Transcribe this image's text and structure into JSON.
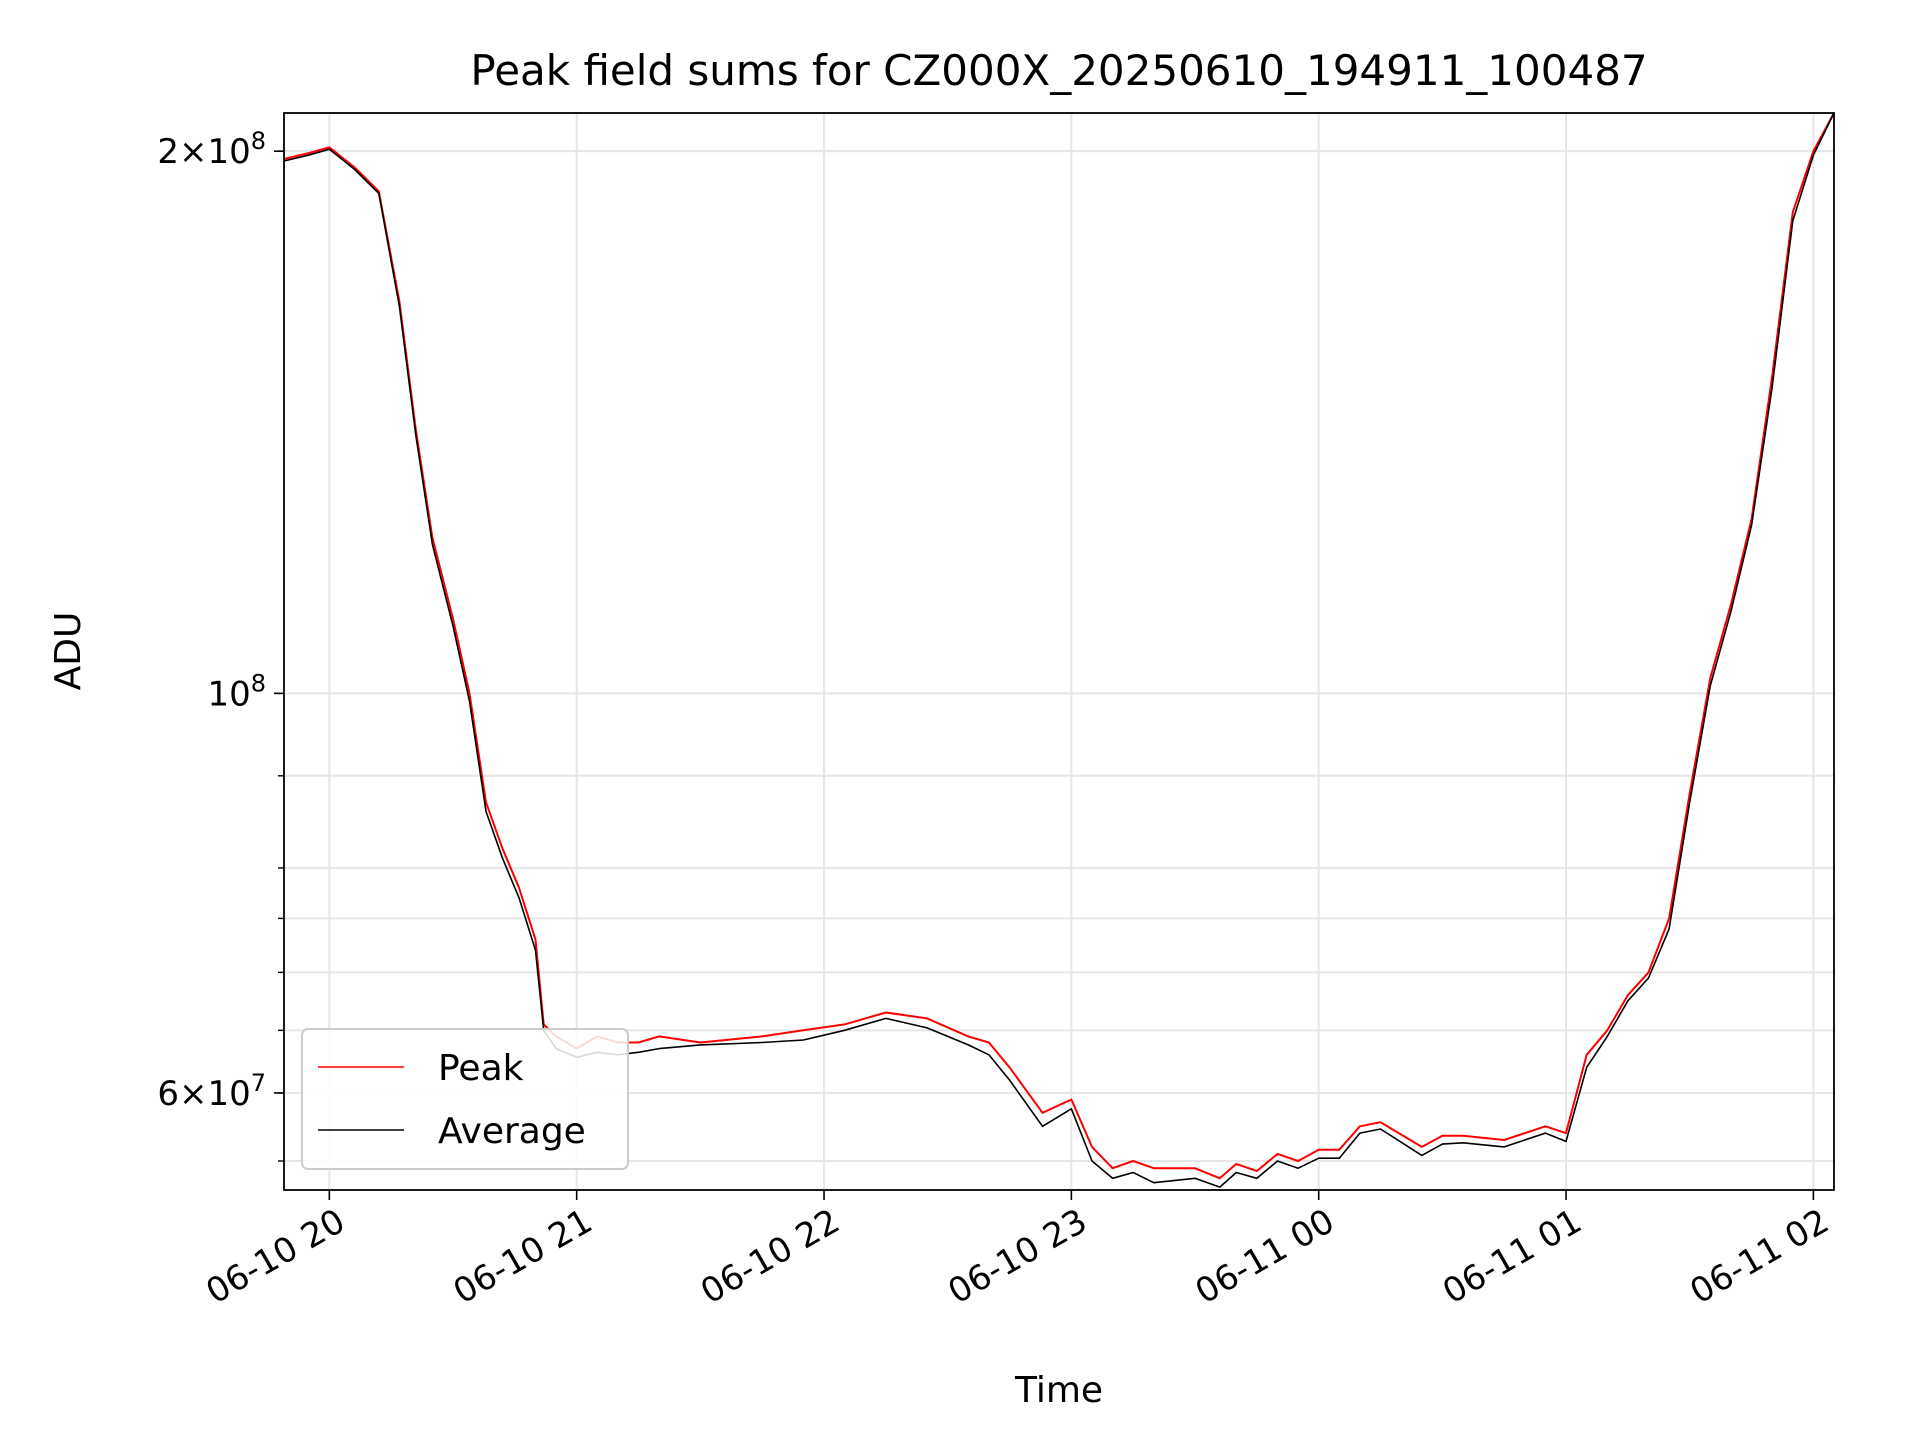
{
  "chart_data": {
    "type": "line",
    "title": "Peak field sums for CZ000X_20250610_194911_100487",
    "xlabel": "Time",
    "ylabel": "ADU",
    "yscale": "log",
    "grid": true,
    "legend_position": "lower-left",
    "xlim": [
      "2025-06-10 19:49",
      "2025-06-11 02:05"
    ],
    "ylim": [
      53000000,
      210000000
    ],
    "x_ticks": [
      {
        "t": "2025-06-10 20:00",
        "label": "06-10 20"
      },
      {
        "t": "2025-06-10 21:00",
        "label": "06-10 21"
      },
      {
        "t": "2025-06-10 22:00",
        "label": "06-10 22"
      },
      {
        "t": "2025-06-10 23:00",
        "label": "06-10 23"
      },
      {
        "t": "2025-06-11 00:00",
        "label": "06-11 00"
      },
      {
        "t": "2025-06-11 01:00",
        "label": "06-11 01"
      },
      {
        "t": "2025-06-11 02:00",
        "label": "06-11 02"
      }
    ],
    "y_major_ticks": [
      {
        "v": 60000000,
        "mant": "6",
        "exp": "7"
      },
      {
        "v": 100000000,
        "mant": "",
        "exp": "8"
      },
      {
        "v": 200000000,
        "mant": "2",
        "exp": "8"
      }
    ],
    "y_minor_ticks": [
      55000000,
      60000000,
      65000000,
      70000000,
      75000000,
      80000000,
      90000000,
      200000000
    ],
    "x": [
      "2025-06-10 19:49",
      "2025-06-10 19:55",
      "2025-06-10 20:00",
      "2025-06-10 20:03",
      "2025-06-10 20:06",
      "2025-06-10 20:08",
      "2025-06-10 20:12",
      "2025-06-10 20:17",
      "2025-06-10 20:21",
      "2025-06-10 20:25",
      "2025-06-10 20:30",
      "2025-06-10 20:34",
      "2025-06-10 20:38",
      "2025-06-10 20:42",
      "2025-06-10 20:46",
      "2025-06-10 20:50",
      "2025-06-10 20:52",
      "2025-06-10 20:55",
      "2025-06-10 21:00",
      "2025-06-10 21:05",
      "2025-06-10 21:10",
      "2025-06-10 21:15",
      "2025-06-10 21:20",
      "2025-06-10 21:30",
      "2025-06-10 21:45",
      "2025-06-10 21:55",
      "2025-06-10 22:05",
      "2025-06-10 22:15",
      "2025-06-10 22:25",
      "2025-06-10 22:35",
      "2025-06-10 22:40",
      "2025-06-10 22:45",
      "2025-06-10 22:53",
      "2025-06-10 23:00",
      "2025-06-10 23:05",
      "2025-06-10 23:10",
      "2025-06-10 23:15",
      "2025-06-10 23:20",
      "2025-06-10 23:30",
      "2025-06-10 23:36",
      "2025-06-10 23:40",
      "2025-06-10 23:45",
      "2025-06-10 23:50",
      "2025-06-10 23:55",
      "2025-06-11 00:00",
      "2025-06-11 00:05",
      "2025-06-11 00:10",
      "2025-06-11 00:15",
      "2025-06-11 00:25",
      "2025-06-11 00:30",
      "2025-06-11 00:35",
      "2025-06-11 00:45",
      "2025-06-11 00:55",
      "2025-06-11 01:00",
      "2025-06-11 01:05",
      "2025-06-11 01:10",
      "2025-06-11 01:15",
      "2025-06-11 01:20",
      "2025-06-11 01:25",
      "2025-06-11 01:30",
      "2025-06-11 01:35",
      "2025-06-11 01:40",
      "2025-06-11 01:45",
      "2025-06-11 01:50",
      "2025-06-11 01:55",
      "2025-06-11 02:00",
      "2025-06-11 02:05"
    ],
    "series": [
      {
        "name": "Peak",
        "color": "#ff0000",
        "values": [
          198000000,
          199500000,
          201000000,
          198500000,
          196000000,
          194000000,
          190000000,
          165000000,
          140000000,
          122000000,
          110000000,
          100000000,
          87000000,
          82000000,
          78000000,
          73000000,
          65500000,
          64500000,
          63500000,
          64500000,
          64000000,
          64000000,
          64500000,
          64000000,
          64500000,
          65000000,
          65500000,
          66500000,
          66000000,
          64500000,
          64000000,
          62000000,
          58500000,
          59500000,
          56000000,
          54500000,
          55000000,
          54500000,
          54500000,
          53800000,
          54800000,
          54300000,
          55500000,
          55000000,
          55800000,
          55800000,
          57500000,
          57800000,
          56000000,
          56800000,
          56800000,
          56500000,
          57500000,
          57000000,
          63000000,
          65000000,
          68000000,
          70000000,
          75000000,
          88000000,
          102000000,
          112000000,
          125000000,
          150000000,
          185000000,
          200000000,
          212000000
        ]
      },
      {
        "name": "Average",
        "color": "#000000",
        "values": [
          197500000,
          199000000,
          200500000,
          198000000,
          195500000,
          193500000,
          189500000,
          164000000,
          139000000,
          121000000,
          109000000,
          99000000,
          86000000,
          81000000,
          77000000,
          72000000,
          65000000,
          63500000,
          62800000,
          63200000,
          63000000,
          63200000,
          63500000,
          63800000,
          64000000,
          64200000,
          65000000,
          66000000,
          65200000,
          63800000,
          63000000,
          61000000,
          57500000,
          58800000,
          55000000,
          53800000,
          54200000,
          53500000,
          53800000,
          53200000,
          54200000,
          53800000,
          55000000,
          54500000,
          55200000,
          55200000,
          57000000,
          57300000,
          55400000,
          56200000,
          56300000,
          56000000,
          57000000,
          56400000,
          62000000,
          64500000,
          67500000,
          69500000,
          74000000,
          87000000,
          101000000,
          111000000,
          124000000,
          148000000,
          183000000,
          199000000,
          211000000
        ]
      }
    ]
  }
}
